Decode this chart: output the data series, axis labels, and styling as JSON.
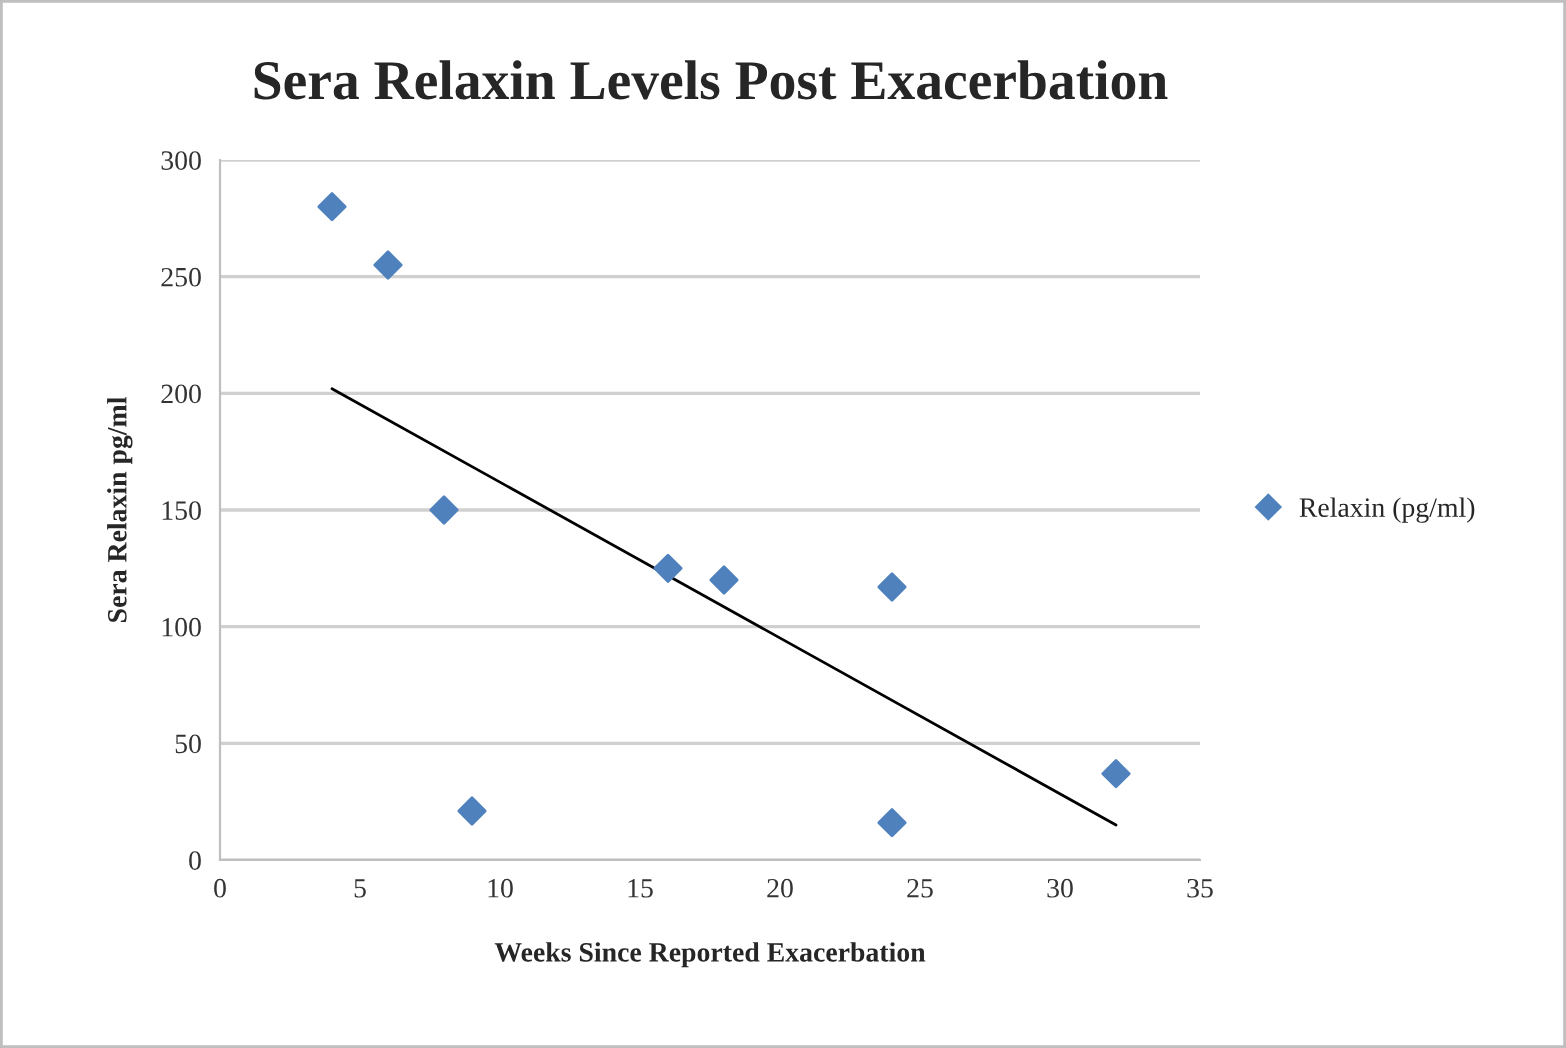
{
  "chart_data": {
    "type": "scatter",
    "title": "Sera Relaxin Levels Post Exacerbation",
    "xlabel": "Weeks Since Reported Exacerbation",
    "ylabel": "Sera Relaxin pg/ml",
    "series": [
      {
        "name": "Relaxin (pg/ml)",
        "color": "#4f81bd",
        "marker": "diamond",
        "x": [
          4,
          6,
          8,
          9,
          16,
          18,
          24,
          24,
          32
        ],
        "values": [
          280,
          255,
          150,
          21,
          125,
          120,
          117,
          16,
          37
        ]
      },
      {
        "type": "line",
        "color": "#000000",
        "marker": "none",
        "line_style": "solid",
        "x": [
          4,
          32
        ],
        "values": [
          202,
          15
        ]
      }
    ],
    "xlim": [
      0,
      35
    ],
    "xticks": [
      0,
      5,
      10,
      15,
      20,
      25,
      30,
      35
    ],
    "ylim": [
      0,
      300
    ],
    "yticks": [
      0,
      50,
      100,
      150,
      200,
      250,
      300
    ],
    "grid": "y",
    "legend": "right"
  }
}
